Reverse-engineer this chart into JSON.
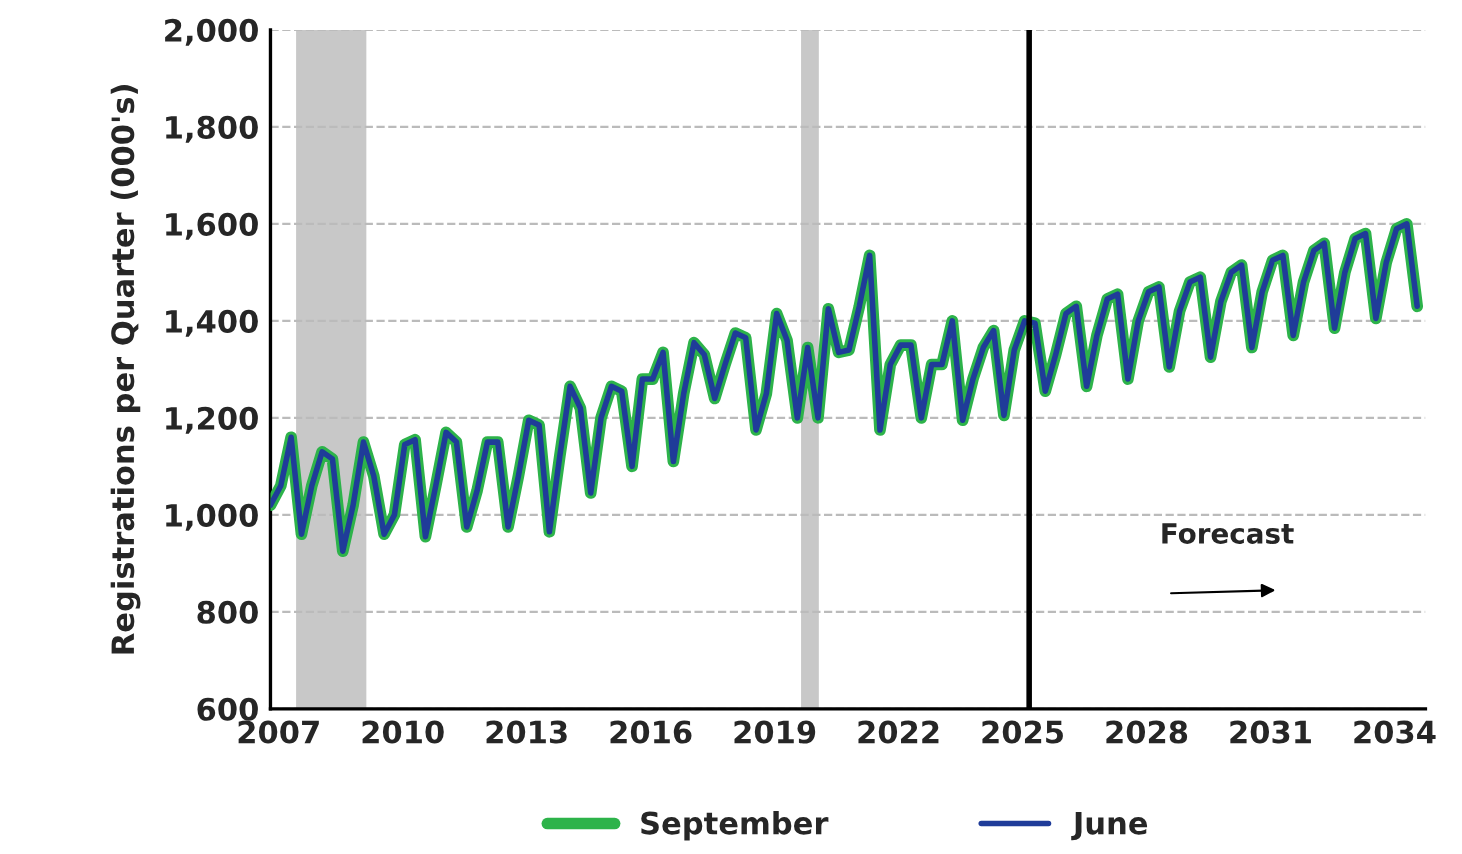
{
  "chart_data": {
    "type": "line",
    "ylabel": "Registrations per Quarter (000's)",
    "x": [
      2006.8,
      2007.05,
      2007.3,
      2007.55,
      2007.8,
      2008.05,
      2008.3,
      2008.55,
      2008.8,
      2009.05,
      2009.3,
      2009.55,
      2009.8,
      2010.05,
      2010.3,
      2010.55,
      2010.8,
      2011.05,
      2011.3,
      2011.55,
      2011.8,
      2012.05,
      2012.3,
      2012.55,
      2012.8,
      2013.05,
      2013.3,
      2013.55,
      2013.8,
      2014.05,
      2014.3,
      2014.55,
      2014.8,
      2015.05,
      2015.3,
      2015.55,
      2015.8,
      2016.05,
      2016.3,
      2016.55,
      2016.8,
      2017.05,
      2017.3,
      2017.55,
      2017.8,
      2018.05,
      2018.3,
      2018.55,
      2018.8,
      2019.05,
      2019.3,
      2019.55,
      2019.8,
      2020.05,
      2020.3,
      2020.55,
      2020.8,
      2021.05,
      2021.3,
      2021.55,
      2021.8,
      2022.05,
      2022.3,
      2022.55,
      2022.8,
      2023.05,
      2023.3,
      2023.55,
      2023.8,
      2024.05,
      2024.3,
      2024.55,
      2024.8,
      2025.05,
      2025.3,
      2025.55,
      2025.8,
      2026.05,
      2026.3,
      2026.55,
      2026.8,
      2027.05,
      2027.3,
      2027.55,
      2027.8,
      2028.05,
      2028.3,
      2028.55,
      2028.8,
      2029.05,
      2029.3,
      2029.55,
      2029.8,
      2030.05,
      2030.3,
      2030.55,
      2030.8,
      2031.05,
      2031.3,
      2031.55,
      2031.8,
      2032.05,
      2032.3,
      2032.55,
      2032.8,
      2033.05,
      2033.3,
      2033.55,
      2033.8,
      2034.05,
      2034.3,
      2034.55
    ],
    "series": [
      {
        "name": "September",
        "color": "#2db34a",
        "values": [
          1020,
          1060,
          1160,
          960,
          1060,
          1130,
          1115,
          925,
          1020,
          1150,
          1080,
          960,
          1000,
          1145,
          1155,
          955,
          1060,
          1170,
          1150,
          975,
          1050,
          1150,
          1150,
          975,
          1080,
          1195,
          1185,
          965,
          1120,
          1265,
          1220,
          1045,
          1200,
          1265,
          1255,
          1100,
          1280,
          1280,
          1335,
          1110,
          1250,
          1355,
          1330,
          1240,
          1310,
          1375,
          1365,
          1175,
          1250,
          1415,
          1360,
          1200,
          1345,
          1200,
          1425,
          1335,
          1340,
          1430,
          1535,
          1175,
          1310,
          1350,
          1350,
          1200,
          1310,
          1310,
          1400,
          1195,
          1280,
          1345,
          1380,
          1205,
          1340,
          1400,
          1395,
          1255,
          1330,
          1415,
          1430,
          1265,
          1370,
          1445,
          1455,
          1280,
          1400,
          1460,
          1470,
          1305,
          1420,
          1480,
          1490,
          1325,
          1440,
          1500,
          1515,
          1345,
          1460,
          1525,
          1535,
          1370,
          1480,
          1545,
          1560,
          1385,
          1500,
          1570,
          1580,
          1405,
          1520,
          1590,
          1600,
          1430
        ]
      },
      {
        "name": "June",
        "color": "#1f3c99",
        "values": [
          1020,
          1060,
          1160,
          960,
          1060,
          1130,
          1115,
          925,
          1020,
          1150,
          1080,
          960,
          1000,
          1145,
          1155,
          955,
          1060,
          1170,
          1150,
          975,
          1050,
          1150,
          1150,
          975,
          1080,
          1195,
          1185,
          965,
          1120,
          1265,
          1220,
          1045,
          1200,
          1265,
          1255,
          1100,
          1280,
          1280,
          1335,
          1110,
          1250,
          1355,
          1330,
          1240,
          1310,
          1375,
          1365,
          1175,
          1250,
          1415,
          1360,
          1200,
          1345,
          1200,
          1425,
          1335,
          1340,
          1430,
          1535,
          1175,
          1310,
          1350,
          1350,
          1200,
          1310,
          1310,
          1400,
          1195,
          1280,
          1345,
          1380,
          1205,
          1340,
          1400,
          1395,
          1255,
          1330,
          1415,
          1430,
          1265,
          1370,
          1445,
          1455,
          1280,
          1400,
          1460,
          1470,
          1305,
          1420,
          1480,
          1490,
          1325,
          1440,
          1500,
          1515,
          1345,
          1460,
          1525,
          1535,
          1370,
          1480,
          1545,
          1560,
          1385,
          1500,
          1570,
          1580,
          1405,
          1520,
          1590,
          1600,
          1430
        ]
      }
    ],
    "xlim": [
      2006.8,
      2034.75
    ],
    "xticks": [
      2007,
      2010,
      2013,
      2016,
      2019,
      2022,
      2025,
      2028,
      2031,
      2034
    ],
    "ylim": [
      600,
      2000
    ],
    "yticks": [
      {
        "value": 600,
        "label": "600"
      },
      {
        "value": 800,
        "label": "800"
      },
      {
        "value": 1000,
        "label": "1,000"
      },
      {
        "value": 1200,
        "label": "1,200"
      },
      {
        "value": 1400,
        "label": "1,400"
      },
      {
        "value": 1600,
        "label": "1,600"
      },
      {
        "value": 1800,
        "label": "1,800"
      },
      {
        "value": 2000,
        "label": "2,000"
      }
    ],
    "bands": [
      {
        "axis": "x",
        "from": 2007.42,
        "to": 2009.12,
        "color": "#c8c8c8"
      },
      {
        "axis": "x",
        "from": 2019.64,
        "to": 2020.07,
        "color": "#c8c8c8"
      }
    ],
    "ref_lines": [
      {
        "axis": "x",
        "value": 2025.16,
        "color": "#000000",
        "line_style": "solid"
      }
    ],
    "annotations": [
      "Forecast"
    ],
    "grid": "y",
    "legend": "bottom",
    "marker": "none",
    "line_style": "solid"
  }
}
